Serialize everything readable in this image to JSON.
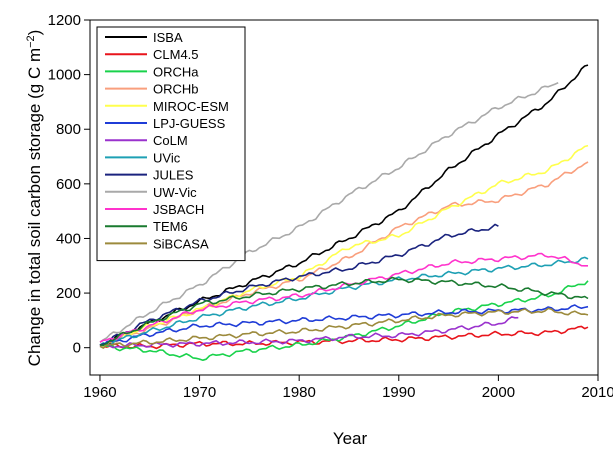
{
  "chart_data": {
    "type": "line",
    "title": "",
    "xlabel": "Year",
    "ylabel": "Change in total soil carbon storage (g C m−2)",
    "ylabel_main": "Change in total soil carbon storage (g C m",
    "ylabel_sup": "−2",
    "ylabel_close": ")",
    "xlim": [
      1959,
      2010
    ],
    "ylim": [
      -100,
      1200
    ],
    "xticks": [
      "1960",
      "1970",
      "1980",
      "1990",
      "2000",
      "2010"
    ],
    "yticks": [
      "0",
      "200",
      "400",
      "600",
      "800",
      "1000",
      "1200"
    ],
    "grid": false,
    "legend_position": "top-left",
    "series": [
      {
        "name": "ISBA",
        "color": "#000000",
        "x": [
          1960,
          1965,
          1970,
          1975,
          1980,
          1985,
          1990,
          1995,
          2000,
          2005,
          2009
        ],
        "y": [
          10,
          90,
          170,
          240,
          310,
          400,
          500,
          650,
          780,
          900,
          1035
        ]
      },
      {
        "name": "CLM4.5",
        "color": "#e8141b",
        "x": [
          1960,
          1965,
          1970,
          1975,
          1980,
          1985,
          1990,
          1995,
          2000,
          2005,
          2009
        ],
        "y": [
          5,
          5,
          15,
          15,
          20,
          25,
          30,
          40,
          50,
          55,
          75
        ]
      },
      {
        "name": "ORCHa",
        "color": "#19d24b",
        "x": [
          1960,
          1965,
          1970,
          1975,
          1980,
          1985,
          1990,
          1995,
          2000,
          2005,
          2009
        ],
        "y": [
          5,
          -10,
          -40,
          -10,
          10,
          40,
          80,
          130,
          160,
          190,
          245
        ]
      },
      {
        "name": "ORCHb",
        "color": "#f99f7d",
        "x": [
          1960,
          1965,
          1970,
          1975,
          1980,
          1985,
          1990,
          1995,
          2000,
          2005,
          2009
        ],
        "y": [
          10,
          70,
          140,
          200,
          250,
          330,
          440,
          520,
          540,
          600,
          680
        ]
      },
      {
        "name": "MIROC-ESM",
        "color": "#ffff4d",
        "x": [
          1960,
          1965,
          1970,
          1975,
          1980,
          1985,
          1990,
          1995,
          2000,
          2005,
          2009
        ],
        "y": [
          10,
          80,
          140,
          210,
          260,
          370,
          410,
          510,
          600,
          650,
          740
        ]
      },
      {
        "name": "LPJ-GUESS",
        "color": "#1f3cd7",
        "x": [
          1960,
          1965,
          1970,
          1975,
          1980,
          1985,
          1990,
          1995,
          2000,
          2005,
          2009
        ],
        "y": [
          10,
          50,
          80,
          90,
          100,
          110,
          120,
          130,
          135,
          140,
          150
        ]
      },
      {
        "name": "CoLM",
        "color": "#9a32cd",
        "x": [
          1960,
          1965,
          1970,
          1975,
          1980,
          1985,
          1990,
          1995,
          2000,
          2002
        ],
        "y": [
          5,
          10,
          15,
          20,
          25,
          40,
          45,
          65,
          90,
          110
        ]
      },
      {
        "name": "UVic",
        "color": "#1ea0b4",
        "x": [
          1960,
          1965,
          1970,
          1975,
          1980,
          1985,
          1990,
          1995,
          2000,
          2005,
          2009
        ],
        "y": [
          10,
          60,
          110,
          150,
          180,
          220,
          250,
          270,
          290,
          305,
          325
        ]
      },
      {
        "name": "JULES",
        "color": "#1a237e",
        "x": [
          1960,
          1965,
          1970,
          1975,
          1980,
          1985,
          1990,
          1995,
          2000
        ],
        "y": [
          10,
          100,
          170,
          220,
          260,
          290,
          340,
          410,
          445
        ]
      },
      {
        "name": "UW-Vic",
        "color": "#a9a9a9",
        "x": [
          1960,
          1965,
          1970,
          1975,
          1980,
          1985,
          1990,
          1995,
          2000,
          2006
        ],
        "y": [
          20,
          130,
          230,
          350,
          440,
          560,
          660,
          780,
          880,
          970
        ]
      },
      {
        "name": "JSBACH",
        "color": "#ff33cc",
        "x": [
          1960,
          1965,
          1970,
          1975,
          1980,
          1985,
          1990,
          1995,
          2000,
          2005,
          2009
        ],
        "y": [
          20,
          80,
          140,
          170,
          190,
          230,
          270,
          310,
          325,
          340,
          300
        ]
      },
      {
        "name": "TEM6",
        "color": "#197a2f",
        "x": [
          1960,
          1965,
          1970,
          1975,
          1980,
          1985,
          1990,
          1995,
          2000,
          2005,
          2009
        ],
        "y": [
          10,
          90,
          160,
          190,
          215,
          235,
          250,
          240,
          225,
          200,
          180
        ]
      },
      {
        "name": "SiBCASA",
        "color": "#9c8a3c",
        "x": [
          1960,
          1965,
          1970,
          1975,
          1980,
          1985,
          1990,
          1995,
          2000,
          2005,
          2009
        ],
        "y": [
          5,
          20,
          35,
          50,
          60,
          80,
          100,
          120,
          130,
          135,
          120
        ]
      }
    ]
  }
}
